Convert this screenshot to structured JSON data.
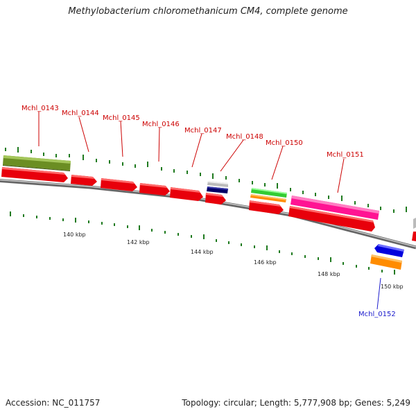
{
  "title": "Methylobacterium chloromethanicum CM4, complete genome",
  "footer": {
    "accession": "Accession: NC_011757",
    "summary": "Topology: circular; Length: 5,777,908 bp; Genes: 5,249"
  },
  "colors": {
    "forward_cds": "#e8000b",
    "forward_label": "#cc0000",
    "reverse_label": "#1a1acc",
    "backbone": "#888888",
    "tick": "#1f7a1f",
    "olive_feature": "#6b8e23",
    "pink_feature": "#ff1493",
    "green_feature": "#33cc33",
    "orange_feature": "#ff8c00",
    "blue_feature": "#0000dd",
    "navy_feature": "#000066",
    "grey_feature": "#bbbbbb"
  },
  "genes": [
    {
      "name": "Mchl_0143",
      "strand": "forward"
    },
    {
      "name": "Mchl_0144",
      "strand": "forward"
    },
    {
      "name": "Mchl_0145",
      "strand": "forward"
    },
    {
      "name": "Mchl_0146",
      "strand": "forward"
    },
    {
      "name": "Mchl_0147",
      "strand": "forward"
    },
    {
      "name": "Mchl_0148",
      "strand": "forward"
    },
    {
      "name": "Mchl_0150",
      "strand": "forward"
    },
    {
      "name": "Mchl_0151",
      "strand": "forward"
    },
    {
      "name": "Mchl_0152",
      "strand": "reverse"
    }
  ],
  "scale_labels": [
    "140 kbp",
    "142 kbp",
    "144 kbp",
    "146 kbp",
    "148 kbp",
    "150 kbp"
  ]
}
